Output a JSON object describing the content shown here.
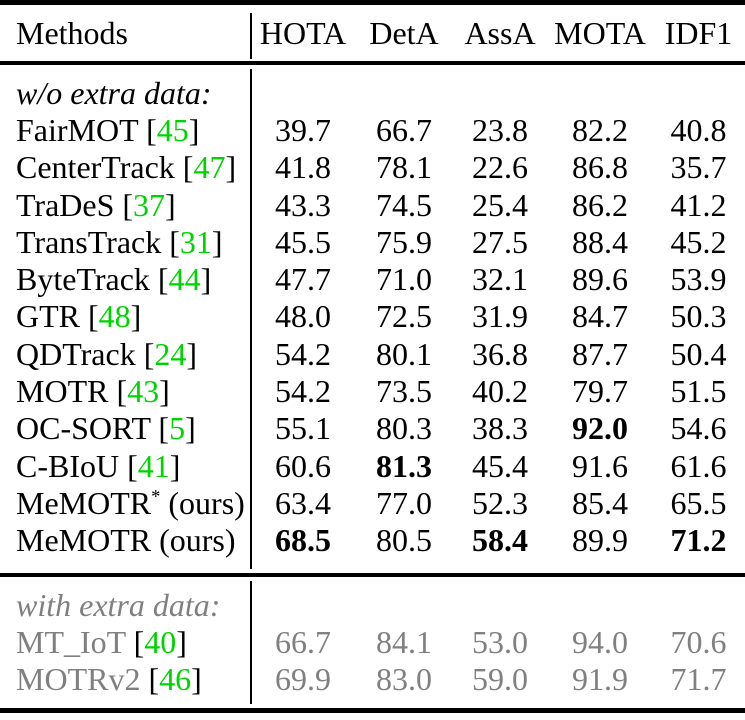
{
  "colors": {
    "text": "#000000",
    "muted_gray": "#808080",
    "citation_green": "#00d400",
    "rule_black": "#000000",
    "background": "#ffffff"
  },
  "header": {
    "columns": [
      "Methods",
      "HOTA",
      "DetA",
      "AssA",
      "MOTA",
      "IDF1"
    ]
  },
  "sections": [
    {
      "label": "w/o extra data:",
      "muted": false,
      "rows": [
        {
          "method": "FairMOT",
          "cite": "45",
          "sup": "",
          "suffix": "",
          "values": [
            "39.7",
            "66.7",
            "23.8",
            "82.2",
            "40.8"
          ],
          "bold": []
        },
        {
          "method": "CenterTrack",
          "cite": "47",
          "sup": "",
          "suffix": "",
          "values": [
            "41.8",
            "78.1",
            "22.6",
            "86.8",
            "35.7"
          ],
          "bold": []
        },
        {
          "method": "TraDeS",
          "cite": "37",
          "sup": "",
          "suffix": "",
          "values": [
            "43.3",
            "74.5",
            "25.4",
            "86.2",
            "41.2"
          ],
          "bold": []
        },
        {
          "method": "TransTrack",
          "cite": "31",
          "sup": "",
          "suffix": "",
          "values": [
            "45.5",
            "75.9",
            "27.5",
            "88.4",
            "45.2"
          ],
          "bold": []
        },
        {
          "method": "ByteTrack",
          "cite": "44",
          "sup": "",
          "suffix": "",
          "values": [
            "47.7",
            "71.0",
            "32.1",
            "89.6",
            "53.9"
          ],
          "bold": []
        },
        {
          "method": "GTR",
          "cite": "48",
          "sup": "",
          "suffix": "",
          "values": [
            "48.0",
            "72.5",
            "31.9",
            "84.7",
            "50.3"
          ],
          "bold": []
        },
        {
          "method": "QDTrack",
          "cite": "24",
          "sup": "",
          "suffix": "",
          "values": [
            "54.2",
            "80.1",
            "36.8",
            "87.7",
            "50.4"
          ],
          "bold": []
        },
        {
          "method": "MOTR",
          "cite": "43",
          "sup": "",
          "suffix": "",
          "values": [
            "54.2",
            "73.5",
            "40.2",
            "79.7",
            "51.5"
          ],
          "bold": []
        },
        {
          "method": "OC-SORT",
          "cite": "5",
          "sup": "",
          "suffix": "",
          "values": [
            "55.1",
            "80.3",
            "38.3",
            "92.0",
            "54.6"
          ],
          "bold": [
            3
          ]
        },
        {
          "method": "C-BIoU",
          "cite": "41",
          "sup": "",
          "suffix": "",
          "values": [
            "60.6",
            "81.3",
            "45.4",
            "91.6",
            "61.6"
          ],
          "bold": [
            1
          ]
        },
        {
          "method": "MeMOTR",
          "cite": null,
          "sup": "*",
          "suffix": " (ours)",
          "values": [
            "63.4",
            "77.0",
            "52.3",
            "85.4",
            "65.5"
          ],
          "bold": []
        },
        {
          "method": "MeMOTR",
          "cite": null,
          "sup": "",
          "suffix": " (ours)",
          "values": [
            "68.5",
            "80.5",
            "58.4",
            "89.9",
            "71.2"
          ],
          "bold": [
            0,
            2,
            4
          ]
        }
      ]
    },
    {
      "label": "with extra data:",
      "muted": true,
      "rows": [
        {
          "method": "MT_IoT",
          "cite": "40",
          "sup": "",
          "suffix": "",
          "values": [
            "66.7",
            "84.1",
            "53.0",
            "94.0",
            "70.6"
          ],
          "bold": []
        },
        {
          "method": "MOTRv2",
          "cite": "46",
          "sup": "",
          "suffix": "",
          "values": [
            "69.9",
            "83.0",
            "59.0",
            "91.9",
            "71.7"
          ],
          "bold": []
        }
      ]
    }
  ]
}
